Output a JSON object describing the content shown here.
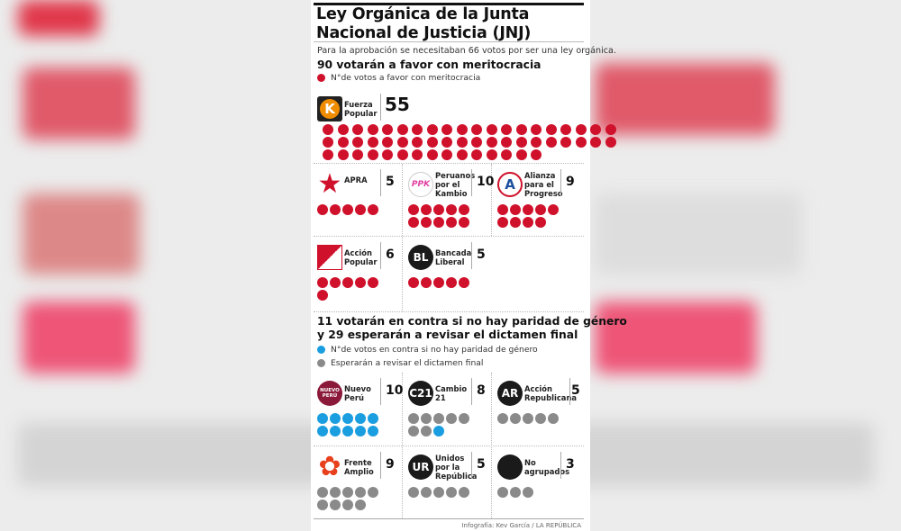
{
  "title_line1": "Ley Orgánica de la Junta",
  "title_line2": "Nacional de Justicia (JNJ)",
  "subtitle": "Para la aprobación se necesitaban 66 votos por ser una ley orgánica.",
  "section1": {
    "heading": "90 votarán a favor con meritocracia",
    "legend": "N°de votos a favor con meritocracia"
  },
  "section2": {
    "heading_line1": "11 votarán en contra si no hay paridad de género",
    "heading_line2": "y 29 esperarán a revisar el dictamen final",
    "legend_blue": "N°de votos en contra si no hay paridad de género",
    "legend_gray": "Esperarán a revisar el dictamen final"
  },
  "colors": {
    "favor": "#d0112b",
    "contra": "#1a9ee0",
    "espera": "#8a8a8a"
  },
  "credit": "Infografía: Kev García / LA REPÚBLICA",
  "chart_data": {
    "type": "pictogram",
    "title": "Ley Orgánica de la Junta Nacional de Justicia (JNJ)",
    "parties": [
      {
        "name": "Fuerza Popular",
        "logo": "K",
        "logo_color": "#f08c00",
        "votes": 55,
        "favor": 55,
        "contra": 0,
        "espera": 0
      },
      {
        "name": "APRA",
        "logo": "star",
        "logo_color": "#d0112b",
        "votes": 5,
        "favor": 5,
        "contra": 0,
        "espera": 0
      },
      {
        "name": "Peruanos\npor el\nKambio",
        "logo": "PPK",
        "logo_color": "#e040a0",
        "votes": 10,
        "favor": 10,
        "contra": 0,
        "espera": 0
      },
      {
        "name": "Alianza\npara el\nProgreso",
        "logo": "A",
        "logo_color": "#1c4fa0",
        "votes": 9,
        "favor": 9,
        "contra": 0,
        "espera": 0
      },
      {
        "name": "Acción\nPopular",
        "logo": "shovel",
        "logo_color": "#d0112b",
        "votes": 6,
        "favor": 6,
        "contra": 0,
        "espera": 0
      },
      {
        "name": "Bancada\nLiberal",
        "logo": "BL",
        "logo_color": "#1a1a1a",
        "votes": 5,
        "favor": 5,
        "contra": 0,
        "espera": 0
      },
      {
        "name": "Nuevo\nPerú",
        "logo": "NUEVO PERÚ",
        "logo_color": "#8b1a3a",
        "votes": 10,
        "favor": 0,
        "contra": 10,
        "espera": 0
      },
      {
        "name": "Cambio\n21",
        "logo": "C21",
        "logo_color": "#1a1a1a",
        "votes": 8,
        "favor": 0,
        "contra": 1,
        "espera": 7
      },
      {
        "name": "Acción\nRepublicana",
        "logo": "AR",
        "logo_color": "#1a1a1a",
        "votes": 5,
        "favor": 0,
        "contra": 0,
        "espera": 5
      },
      {
        "name": "Frente\nAmplio",
        "logo": "flower",
        "logo_color": "#e8401c",
        "votes": 9,
        "favor": 0,
        "contra": 0,
        "espera": 9
      },
      {
        "name": "Unidos\npor la\nRepública",
        "logo": "UR",
        "logo_color": "#1a1a1a",
        "votes": 5,
        "favor": 0,
        "contra": 0,
        "espera": 5
      },
      {
        "name": "No\nagrupados",
        "logo": "",
        "logo_color": "#1a1a1a",
        "votes": 3,
        "favor": 0,
        "contra": 0,
        "espera": 3
      }
    ]
  }
}
